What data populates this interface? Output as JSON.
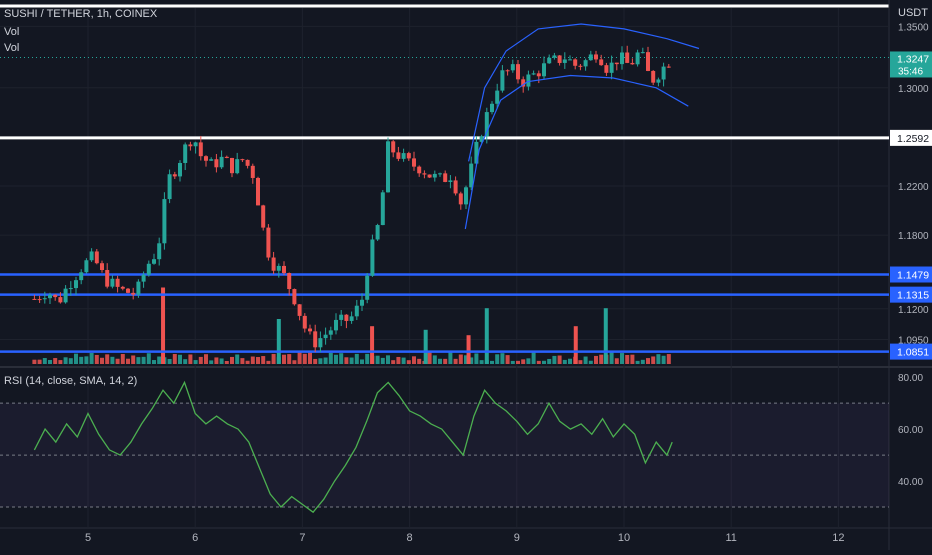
{
  "chart_data": [
    {
      "type": "candlestick",
      "title": "SUSHI / TETHER, 1h, COINEX",
      "indicators": [
        "Vol",
        "Vol"
      ],
      "currency": "USDT",
      "ylim": [
        1.075,
        1.365
      ],
      "y_ticks": [
        "1.3500",
        "1.3000",
        "1.2200",
        "1.1800",
        "1.1200",
        "1.0950"
      ],
      "x_ticks": [
        "5",
        "6",
        "7",
        "8",
        "9",
        "10",
        "11",
        "12"
      ],
      "last_price": "1.3247",
      "countdown": "35:46",
      "horizontal_levels": [
        {
          "label": "1.2592",
          "value": 1.2592,
          "color": "#ffffff"
        },
        {
          "label": "1.1479",
          "value": 1.1479,
          "color": "#2962ff"
        },
        {
          "label": "1.1315",
          "value": 1.1315,
          "color": "#2962ff"
        },
        {
          "label": "1.0851",
          "value": 1.0851,
          "color": "#2962ff"
        }
      ],
      "close_path": [
        [
          4.5,
          1.128
        ],
        [
          4.62,
          1.135
        ],
        [
          4.72,
          1.125
        ],
        [
          4.82,
          1.14
        ],
        [
          4.95,
          1.155
        ],
        [
          5.05,
          1.162
        ],
        [
          5.15,
          1.145
        ],
        [
          5.3,
          1.135
        ],
        [
          5.45,
          1.132
        ],
        [
          5.55,
          1.155
        ],
        [
          5.65,
          1.168
        ],
        [
          5.75,
          1.225
        ],
        [
          5.82,
          1.235
        ],
        [
          5.9,
          1.25
        ],
        [
          5.98,
          1.262
        ],
        [
          6.05,
          1.245
        ],
        [
          6.15,
          1.237
        ],
        [
          6.25,
          1.242
        ],
        [
          6.35,
          1.235
        ],
        [
          6.45,
          1.242
        ],
        [
          6.55,
          1.228
        ],
        [
          6.62,
          1.19
        ],
        [
          6.7,
          1.16
        ],
        [
          6.82,
          1.148
        ],
        [
          6.92,
          1.13
        ],
        [
          7.02,
          1.105
        ],
        [
          7.1,
          1.092
        ],
        [
          7.2,
          1.098
        ],
        [
          7.32,
          1.108
        ],
        [
          7.45,
          1.112
        ],
        [
          7.55,
          1.125
        ],
        [
          7.62,
          1.16
        ],
        [
          7.72,
          1.192
        ],
        [
          7.8,
          1.252
        ],
        [
          7.9,
          1.245
        ],
        [
          8.0,
          1.238
        ],
        [
          8.1,
          1.235
        ],
        [
          8.2,
          1.228
        ],
        [
          8.3,
          1.225
        ],
        [
          8.4,
          1.23
        ],
        [
          8.47,
          1.205
        ],
        [
          8.55,
          1.225
        ],
        [
          8.65,
          1.26
        ],
        [
          8.75,
          1.285
        ],
        [
          8.85,
          1.31
        ],
        [
          8.95,
          1.315
        ],
        [
          9.05,
          1.305
        ],
        [
          9.15,
          1.31
        ],
        [
          9.3,
          1.32
        ],
        [
          9.45,
          1.325
        ],
        [
          9.55,
          1.318
        ],
        [
          9.65,
          1.322
        ],
        [
          9.75,
          1.33
        ],
        [
          9.85,
          1.315
        ],
        [
          9.95,
          1.325
        ],
        [
          10.05,
          1.318
        ],
        [
          10.15,
          1.33
        ],
        [
          10.25,
          1.305
        ],
        [
          10.35,
          1.315
        ],
        [
          10.45,
          1.3247
        ]
      ],
      "channel": {
        "upper": [
          [
            8.55,
            1.24
          ],
          [
            8.7,
            1.3
          ],
          [
            8.9,
            1.33
          ],
          [
            9.2,
            1.348
          ],
          [
            9.6,
            1.352
          ],
          [
            10.0,
            1.348
          ],
          [
            10.4,
            1.34
          ],
          [
            10.7,
            1.332
          ]
        ],
        "lower": [
          [
            8.52,
            1.185
          ],
          [
            8.65,
            1.25
          ],
          [
            8.85,
            1.29
          ],
          [
            9.1,
            1.305
          ],
          [
            9.5,
            1.31
          ],
          [
            9.9,
            1.308
          ],
          [
            10.3,
            1.3
          ],
          [
            10.6,
            1.285
          ]
        ],
        "color": "#2962ff"
      },
      "volume_spikes": [
        {
          "x": 5.7,
          "vol": 0.85
        },
        {
          "x": 6.78,
          "vol": 0.5
        },
        {
          "x": 7.65,
          "vol": 0.42
        },
        {
          "x": 8.15,
          "vol": 0.38
        },
        {
          "x": 8.55,
          "vol": 0.32
        },
        {
          "x": 8.72,
          "vol": 0.62
        },
        {
          "x": 9.55,
          "vol": 0.42
        },
        {
          "x": 9.83,
          "vol": 0.62
        }
      ]
    },
    {
      "type": "line",
      "title": "RSI (14, close, SMA, 14, 2)",
      "ylim": [
        25,
        82
      ],
      "y_ticks": [
        "80.00",
        "60.00",
        "40.00"
      ],
      "bands": [
        70,
        50,
        30
      ],
      "series": [
        {
          "color": "#4caf50",
          "x": [
            4.5,
            4.6,
            4.7,
            4.8,
            4.9,
            5.0,
            5.1,
            5.2,
            5.3,
            5.4,
            5.5,
            5.6,
            5.7,
            5.8,
            5.9,
            6.0,
            6.1,
            6.2,
            6.3,
            6.4,
            6.5,
            6.6,
            6.7,
            6.8,
            6.9,
            7.0,
            7.1,
            7.2,
            7.3,
            7.4,
            7.5,
            7.6,
            7.7,
            7.8,
            7.9,
            8.0,
            8.1,
            8.2,
            8.3,
            8.4,
            8.5,
            8.6,
            8.7,
            8.8,
            8.9,
            9.0,
            9.1,
            9.2,
            9.3,
            9.4,
            9.5,
            9.6,
            9.7,
            9.8,
            9.9,
            10.0,
            10.1,
            10.2,
            10.3,
            10.4,
            10.45
          ],
          "values": [
            52,
            60,
            55,
            62,
            57,
            66,
            58,
            52,
            50,
            55,
            62,
            68,
            75,
            70,
            78,
            66,
            62,
            65,
            62,
            60,
            55,
            45,
            35,
            30,
            34,
            31,
            28,
            33,
            40,
            46,
            53,
            63,
            74,
            78,
            73,
            67,
            65,
            62,
            60,
            55,
            50,
            65,
            75,
            70,
            67,
            63,
            58,
            62,
            70,
            63,
            60,
            62,
            58,
            64,
            57,
            62,
            58,
            47,
            55,
            50,
            55
          ]
        }
      ]
    }
  ]
}
